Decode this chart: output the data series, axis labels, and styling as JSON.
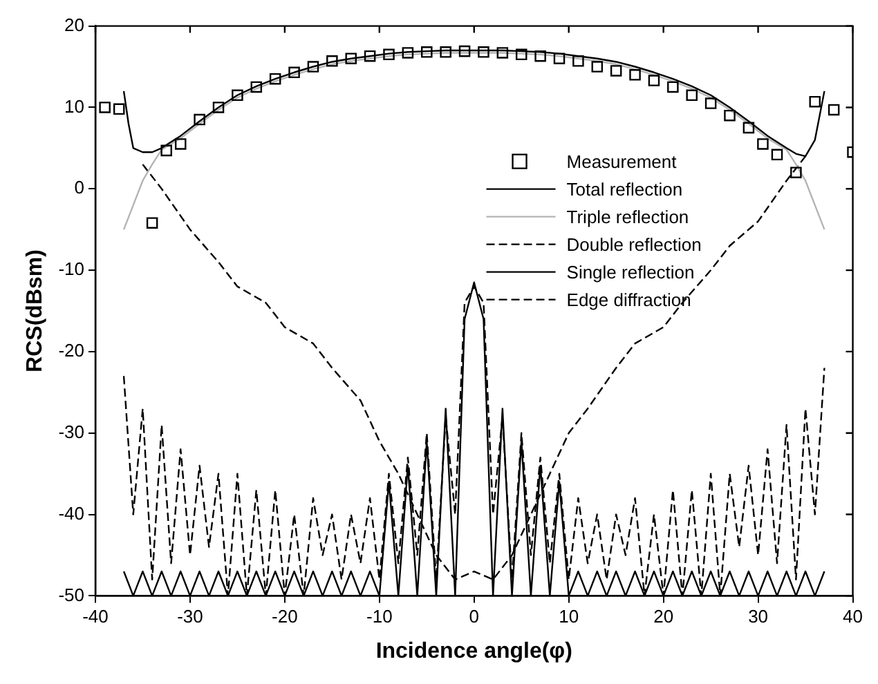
{
  "chart_data": {
    "type": "line",
    "xlabel": "Incidence angle(φ)",
    "ylabel": "RCS(dBsm)",
    "xlim": [
      -40,
      40
    ],
    "xticks": [
      -40,
      -30,
      -20,
      -10,
      0,
      10,
      20,
      30,
      40
    ],
    "ylim": [
      -50,
      20
    ],
    "yticks": [
      -50,
      -40,
      -30,
      -20,
      -10,
      0,
      10,
      20
    ],
    "grid": false,
    "legend": "top right",
    "series": [
      {
        "name": "Measurement",
        "type": "scatter",
        "marker": "square",
        "color": "#000000",
        "x": [
          -39,
          -37.5,
          -34,
          -32.5,
          -31,
          -29,
          -27,
          -25,
          -23,
          -21,
          -19,
          -17,
          -15,
          -13,
          -11,
          -9,
          -7,
          -5,
          -3,
          -1,
          1,
          3,
          5,
          7,
          9,
          11,
          13,
          15,
          17,
          19,
          21,
          23,
          25,
          27,
          29,
          30.5,
          32,
          34,
          36,
          38,
          40
        ],
        "values": [
          10,
          9.8,
          -4.2,
          4.7,
          5.5,
          8.5,
          10,
          11.5,
          12.5,
          13.5,
          14.3,
          15,
          15.7,
          16,
          16.3,
          16.5,
          16.7,
          16.8,
          16.8,
          16.9,
          16.8,
          16.7,
          16.5,
          16.3,
          16,
          15.7,
          15,
          14.5,
          14,
          13.3,
          12.5,
          11.5,
          10.5,
          9,
          7.5,
          5.5,
          4.2,
          2,
          10.7,
          9.7,
          4.5
        ]
      },
      {
        "name": "Total reflection",
        "line_style": "solid",
        "color": "#000000",
        "x": [
          -37,
          -36.5,
          -36,
          -35,
          -34,
          -33,
          -31,
          -29,
          -27,
          -25,
          -23,
          -21,
          -19,
          -17,
          -15,
          -13,
          -11,
          -9,
          -7,
          -5,
          -3,
          -1,
          0,
          1,
          3,
          5,
          7,
          9,
          11,
          13,
          15,
          17,
          19,
          21,
          23,
          25,
          27,
          29,
          31,
          33,
          34,
          35,
          36,
          36.5,
          37
        ],
        "values": [
          12,
          8,
          5,
          4.5,
          4.5,
          5,
          6.5,
          8.3,
          10,
          11.5,
          12.6,
          13.5,
          14.3,
          15,
          15.6,
          16,
          16.3,
          16.6,
          16.8,
          16.9,
          17,
          17,
          17,
          17,
          17,
          16.9,
          16.8,
          16.6,
          16.3,
          16,
          15.6,
          15,
          14.3,
          13.5,
          12.6,
          11.5,
          10,
          8.3,
          6.5,
          5,
          4.3,
          4,
          6,
          9,
          12
        ]
      },
      {
        "name": "Triple reflection",
        "line_style": "solid",
        "color": "#b4b4b4",
        "x": [
          -37,
          -36,
          -35,
          -34,
          -33,
          -31,
          -29,
          -27,
          -25,
          -23,
          -21,
          -19,
          -17,
          -15,
          -13,
          -11,
          -9,
          -7,
          -5,
          -3,
          -1,
          0,
          1,
          3,
          5,
          7,
          9,
          11,
          13,
          15,
          17,
          19,
          21,
          23,
          25,
          27,
          29,
          31,
          33,
          34,
          35,
          36,
          37
        ],
        "values": [
          -5,
          -2,
          1,
          3,
          4.8,
          6.2,
          8,
          9.7,
          11.2,
          12.3,
          13.2,
          14,
          14.7,
          15.3,
          15.7,
          16,
          16.3,
          16.5,
          16.6,
          16.7,
          16.7,
          16.7,
          16.7,
          16.7,
          16.6,
          16.5,
          16.3,
          16,
          15.7,
          15.3,
          14.7,
          14,
          13.2,
          12.3,
          11.2,
          9.7,
          8,
          6.2,
          4.8,
          3,
          1,
          -2,
          -5
        ]
      },
      {
        "name": "Double reflection",
        "line_style": "dashed",
        "color": "#000000",
        "x": [
          -35,
          -33,
          -30,
          -27,
          -25,
          -22,
          -20,
          -17,
          -15,
          -12,
          -10,
          -8,
          -6,
          -4,
          -2,
          0,
          2,
          4,
          6,
          8,
          10,
          12,
          15,
          17,
          20,
          22,
          25,
          27,
          30,
          33,
          35
        ],
        "values": [
          3,
          0,
          -5,
          -9,
          -12,
          -14,
          -17,
          -19,
          -22,
          -26,
          -31,
          -35,
          -40,
          -45,
          -48,
          -47,
          -48,
          -45,
          -40,
          -35,
          -30,
          -27,
          -22,
          -19,
          -17,
          -14,
          -10,
          -7,
          -4,
          1,
          4
        ]
      },
      {
        "name": "Single reflection",
        "line_style": "solid",
        "color": "#000000",
        "x": [
          -37,
          -36,
          -35,
          -34,
          -33,
          -32,
          -31,
          -30,
          -29,
          -28,
          -27,
          -26,
          -25,
          -24,
          -23,
          -22,
          -21,
          -20,
          -19,
          -18,
          -17,
          -16,
          -15,
          -14,
          -13,
          -12,
          -11,
          -10,
          -9,
          -8,
          -7,
          -6,
          -5,
          -4,
          -3,
          -2,
          -1,
          0,
          1,
          2,
          3,
          4,
          5,
          6,
          7,
          8,
          9,
          10,
          11,
          12,
          13,
          14,
          15,
          16,
          17,
          18,
          19,
          20,
          21,
          22,
          23,
          24,
          25,
          26,
          27,
          28,
          29,
          30,
          31,
          32,
          33,
          34,
          35,
          36,
          37
        ],
        "values": [
          -47,
          -50,
          -47,
          -50,
          -47,
          -50,
          -47,
          -50,
          -47,
          -50,
          -47,
          -50,
          -47,
          -50,
          -47,
          -50,
          -47,
          -50,
          -47,
          -50,
          -47,
          -50,
          -47,
          -50,
          -47,
          -50,
          -47,
          -50,
          -36,
          -50,
          -34,
          -50,
          -31,
          -50,
          -27,
          -50,
          -16,
          -11.5,
          -16,
          -50,
          -27,
          -50,
          -31,
          -50,
          -34,
          -50,
          -36,
          -50,
          -47,
          -50,
          -47,
          -50,
          -47,
          -50,
          -47,
          -50,
          -47,
          -50,
          -47,
          -50,
          -47,
          -50,
          -47,
          -50,
          -47,
          -50,
          -47,
          -50,
          -47,
          -50,
          -47,
          -50,
          -47,
          -50,
          -47
        ]
      },
      {
        "name": "Edge diffraction",
        "line_style": "dashed",
        "color": "#000000",
        "x": [
          -37,
          -36,
          -35,
          -34,
          -33,
          -32,
          -31,
          -30,
          -29,
          -28,
          -27,
          -26,
          -25,
          -24,
          -23,
          -22,
          -21,
          -20,
          -19,
          -18,
          -17,
          -16,
          -15,
          -14,
          -13,
          -12,
          -11,
          -10,
          -9,
          -8,
          -7,
          -6,
          -5,
          -4,
          -3,
          -2,
          -1,
          0,
          1,
          2,
          3,
          4,
          5,
          6,
          7,
          8,
          9,
          10,
          11,
          12,
          13,
          14,
          15,
          16,
          17,
          18,
          19,
          20,
          21,
          22,
          23,
          24,
          25,
          26,
          27,
          28,
          29,
          30,
          31,
          32,
          33,
          34,
          35,
          36,
          37
        ],
        "values": [
          -23,
          -40,
          -27,
          -48,
          -29,
          -46,
          -32,
          -45,
          -34,
          -44,
          -35,
          -50,
          -35,
          -50,
          -37,
          -50,
          -37,
          -50,
          -40,
          -50,
          -38,
          -45,
          -40,
          -48,
          -40,
          -46,
          -38,
          -48,
          -35,
          -46,
          -33,
          -45,
          -30,
          -48,
          -28,
          -40,
          -14,
          -12,
          -14,
          -40,
          -28,
          -48,
          -30,
          -45,
          -33,
          -46,
          -35,
          -48,
          -38,
          -46,
          -40,
          -48,
          -40,
          -45,
          -38,
          -50,
          -40,
          -50,
          -37,
          -50,
          -37,
          -50,
          -35,
          -50,
          -35,
          -44,
          -34,
          -45,
          -32,
          -46,
          -29,
          -48,
          -27,
          -40,
          -22
        ]
      }
    ]
  }
}
